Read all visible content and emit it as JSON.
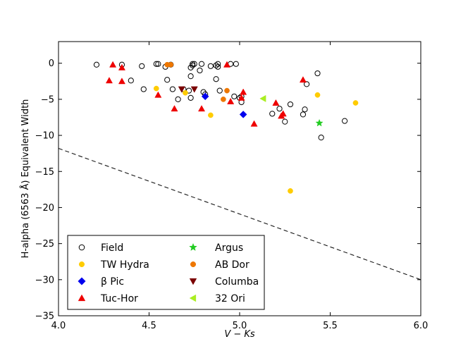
{
  "chart_data": {
    "type": "scatter",
    "title": "",
    "xlabel": "V − Ks",
    "ylabel": "H-alpha (6563 Å) Equivalent Width",
    "xlim": [
      4.0,
      6.0
    ],
    "ylim": [
      -35,
      3
    ],
    "xticks": [
      4.0,
      4.5,
      5.0,
      5.5,
      6.0
    ],
    "xtick_labels": [
      "4.0",
      "4.5",
      "5.0",
      "5.5",
      "6.0"
    ],
    "yticks": [
      0,
      -5,
      -10,
      -15,
      -20,
      -25,
      -30,
      -35
    ],
    "ytick_labels": [
      "0",
      "−5",
      "−10",
      "−15",
      "−20",
      "−25",
      "−30",
      "−35"
    ],
    "grid": false,
    "legend_position": "lower-left",
    "colors": {
      "field": "#000000",
      "tw_hydra": "#ffcc00",
      "beta_pic": "#0000ee",
      "tuc_hor": "#ee0000",
      "argus": "#22cc22",
      "ab_dor": "#ee7700",
      "columba": "#7a0000",
      "ori32": "#aaee22"
    },
    "reference_line": {
      "style": "dashed",
      "points": [
        [
          4.0,
          -11.8
        ],
        [
          6.0,
          -30.0
        ]
      ]
    },
    "series": [
      {
        "name": "Field",
        "marker": "open-circle",
        "color": "#000000",
        "points": [
          [
            4.21,
            -0.2
          ],
          [
            4.35,
            -0.2
          ],
          [
            4.4,
            -2.4
          ],
          [
            4.46,
            -0.4
          ],
          [
            4.47,
            -3.6
          ],
          [
            4.54,
            -0.1
          ],
          [
            4.55,
            -0.1
          ],
          [
            4.59,
            -0.5
          ],
          [
            4.6,
            -2.3
          ],
          [
            4.62,
            -0.2
          ],
          [
            4.63,
            -3.6
          ],
          [
            4.66,
            -5.0
          ],
          [
            4.69,
            -3.6
          ],
          [
            4.72,
            -3.8
          ],
          [
            4.73,
            -1.8
          ],
          [
            4.73,
            -0.6
          ],
          [
            4.74,
            -0.1
          ],
          [
            4.74,
            -0.3
          ],
          [
            4.75,
            -0.1
          ],
          [
            4.78,
            -1.0
          ],
          [
            4.79,
            -0.1
          ],
          [
            4.8,
            -4.0
          ],
          [
            4.81,
            -4.3
          ],
          [
            4.84,
            -0.4
          ],
          [
            4.87,
            -0.3
          ],
          [
            4.87,
            -2.2
          ],
          [
            4.88,
            -0.5
          ],
          [
            4.88,
            -0.1
          ],
          [
            4.89,
            -3.8
          ],
          [
            4.95,
            -0.1
          ],
          [
            4.97,
            -4.6
          ],
          [
            4.98,
            -0.1
          ],
          [
            5.0,
            -4.8
          ],
          [
            5.01,
            -4.6
          ],
          [
            5.01,
            -5.4
          ],
          [
            5.18,
            -7.0
          ],
          [
            5.22,
            -6.3
          ],
          [
            5.25,
            -8.1
          ],
          [
            5.28,
            -5.7
          ],
          [
            5.35,
            -7.1
          ],
          [
            5.36,
            -6.4
          ],
          [
            5.37,
            -2.9
          ],
          [
            5.43,
            -1.4
          ],
          [
            5.45,
            -10.3
          ],
          [
            5.58,
            -8.0
          ],
          [
            4.73,
            -4.8
          ]
        ]
      },
      {
        "name": "TW Hydra",
        "marker": "filled-circle",
        "color": "#ffcc00",
        "points": [
          [
            4.54,
            -3.5
          ],
          [
            4.7,
            -4.1
          ],
          [
            4.84,
            -7.2
          ],
          [
            5.28,
            -17.7
          ],
          [
            5.43,
            -4.4
          ],
          [
            5.64,
            -5.5
          ]
        ]
      },
      {
        "name": "β Pic",
        "marker": "diamond",
        "color": "#0000ee",
        "points": [
          [
            4.81,
            -4.6
          ],
          [
            5.02,
            -7.1
          ]
        ]
      },
      {
        "name": "Tuc-Hor",
        "marker": "triangle-up",
        "color": "#ee0000",
        "points": [
          [
            4.28,
            -2.4
          ],
          [
            4.3,
            -0.2
          ],
          [
            4.35,
            -0.6
          ],
          [
            4.35,
            -2.5
          ],
          [
            4.55,
            -4.4
          ],
          [
            4.64,
            -6.3
          ],
          [
            4.79,
            -6.3
          ],
          [
            4.93,
            -0.2
          ],
          [
            4.95,
            -5.3
          ],
          [
            5.01,
            -4.8
          ],
          [
            5.02,
            -4.0
          ],
          [
            5.08,
            -8.4
          ],
          [
            5.2,
            -5.5
          ],
          [
            5.23,
            -7.3
          ],
          [
            5.24,
            -7.0
          ],
          [
            5.35,
            -2.3
          ]
        ]
      },
      {
        "name": "Argus",
        "marker": "star",
        "color": "#22cc22",
        "points": [
          [
            5.44,
            -8.3
          ]
        ]
      },
      {
        "name": "AB Dor",
        "marker": "filled-circle",
        "color": "#ee7700",
        "points": [
          [
            4.6,
            -0.2
          ],
          [
            4.62,
            -0.2
          ],
          [
            4.91,
            -5.0
          ],
          [
            4.93,
            -3.8
          ]
        ]
      },
      {
        "name": "Columba",
        "marker": "triangle-down",
        "color": "#7a0000",
        "points": [
          [
            4.68,
            -3.6
          ],
          [
            4.75,
            -3.6
          ]
        ]
      },
      {
        "name": "32 Ori",
        "marker": "triangle-left",
        "color": "#aaee22",
        "points": [
          [
            5.13,
            -4.9
          ]
        ]
      }
    ]
  }
}
